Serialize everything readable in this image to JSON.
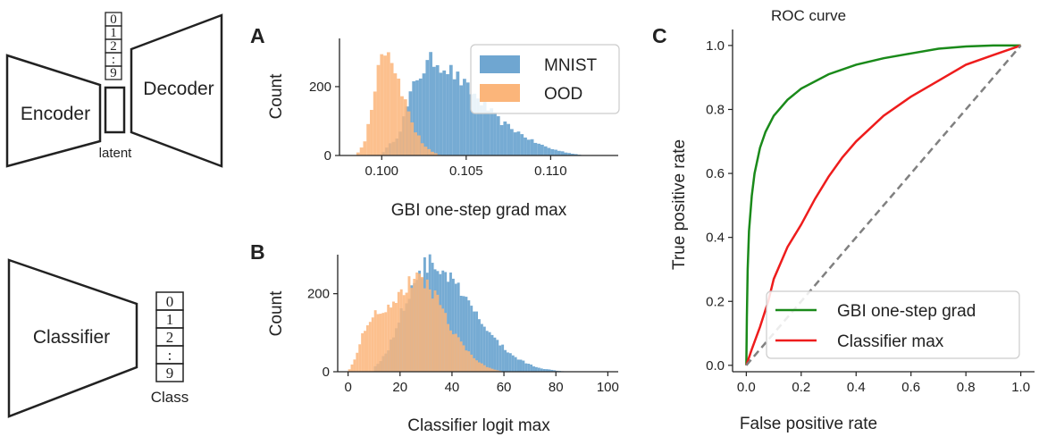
{
  "diagrams": {
    "encoder_label": "Encoder",
    "decoder_label": "Decoder",
    "latent_label": "latent",
    "classifier_label": "Classifier",
    "class_label": "Class",
    "digits": [
      "0",
      "1",
      "2",
      ":",
      "9"
    ]
  },
  "colors": {
    "mnist": "#6fa6d1",
    "ood": "#fbb57a",
    "overlap": "#b9a08a",
    "gbi": "#1a8a1a",
    "classifier": "#ee1c1c",
    "chance": "#808080"
  },
  "chart_data": [
    {
      "panel": "A",
      "type": "histogram",
      "title": "",
      "xlabel": "GBI one-step grad max",
      "ylabel": "Count",
      "xlim": [
        0.0975,
        0.114
      ],
      "ylim": [
        0,
        340
      ],
      "xticks": [
        0.1,
        0.105,
        0.11
      ],
      "xtick_labels": [
        "0.100",
        "0.105",
        "0.110"
      ],
      "yticks": [
        0,
        200
      ],
      "ytick_labels": [
        "0",
        "200"
      ],
      "bin_width": 0.0002,
      "legend": {
        "position": "top-right",
        "entries": [
          "MNIST",
          "OOD"
        ]
      },
      "series": [
        {
          "name": "MNIST",
          "x": [
            0.1,
            0.101,
            0.102,
            0.103,
            0.104,
            0.105,
            0.106,
            0.107,
            0.108,
            0.109,
            0.11,
            0.111,
            0.112
          ],
          "y": [
            5,
            60,
            220,
            280,
            250,
            200,
            150,
            100,
            70,
            40,
            20,
            8,
            0
          ]
        },
        {
          "name": "OOD",
          "x": [
            0.0985,
            0.099,
            0.0995,
            0.1,
            0.1005,
            0.101,
            0.1015,
            0.102,
            0.1025,
            0.103,
            0.1035
          ],
          "y": [
            0,
            40,
            170,
            320,
            300,
            220,
            140,
            70,
            30,
            10,
            0
          ]
        }
      ]
    },
    {
      "panel": "B",
      "type": "histogram",
      "title": "",
      "xlabel": "Classifier logit max",
      "ylabel": "Count",
      "xlim": [
        -4,
        104
      ],
      "ylim": [
        0,
        300
      ],
      "xticks": [
        0,
        20,
        40,
        60,
        80,
        100
      ],
      "xtick_labels": [
        "0",
        "20",
        "40",
        "60",
        "80",
        "100"
      ],
      "yticks": [
        0,
        200
      ],
      "ytick_labels": [
        "0",
        "200"
      ],
      "bin_width": 1,
      "series": [
        {
          "name": "MNIST",
          "x": [
            10,
            15,
            20,
            25,
            30,
            35,
            40,
            45,
            50,
            55,
            60,
            65,
            70,
            75,
            80,
            85
          ],
          "y": [
            10,
            50,
            140,
            230,
            275,
            270,
            235,
            185,
            140,
            95,
            60,
            35,
            18,
            8,
            3,
            0
          ]
        },
        {
          "name": "OOD",
          "x": [
            0,
            3,
            6,
            10,
            15,
            20,
            25,
            30,
            35,
            40,
            45,
            50,
            55,
            60
          ],
          "y": [
            0,
            40,
            110,
            150,
            165,
            200,
            235,
            235,
            180,
            110,
            60,
            25,
            8,
            0
          ]
        }
      ]
    },
    {
      "panel": "C",
      "type": "line",
      "title": "ROC curve",
      "xlabel": "False positive rate",
      "ylabel": "True positive rate",
      "xlim": [
        -0.05,
        1.05
      ],
      "ylim": [
        -0.02,
        1.05
      ],
      "xticks": [
        0,
        0.2,
        0.4,
        0.6,
        0.8,
        1.0
      ],
      "xtick_labels": [
        "0.0",
        "0.2",
        "0.4",
        "0.6",
        "0.8",
        "1.0"
      ],
      "yticks": [
        0,
        0.2,
        0.4,
        0.6,
        0.8,
        1.0
      ],
      "ytick_labels": [
        "0.0",
        "0.2",
        "0.4",
        "0.6",
        "0.8",
        "1.0"
      ],
      "legend": {
        "position": "bottom-right",
        "entries": [
          "GBI one-step grad",
          "Classifier max"
        ]
      },
      "series": [
        {
          "name": "GBI one-step grad",
          "x": [
            0,
            0.002,
            0.005,
            0.01,
            0.02,
            0.03,
            0.05,
            0.07,
            0.1,
            0.15,
            0.2,
            0.3,
            0.4,
            0.5,
            0.6,
            0.7,
            0.8,
            0.9,
            1.0
          ],
          "y": [
            0,
            0.15,
            0.3,
            0.42,
            0.53,
            0.6,
            0.68,
            0.73,
            0.78,
            0.83,
            0.865,
            0.91,
            0.94,
            0.96,
            0.975,
            0.99,
            0.997,
            1.0,
            1.0
          ]
        },
        {
          "name": "Classifier max",
          "x": [
            0,
            0.02,
            0.05,
            0.08,
            0.1,
            0.15,
            0.2,
            0.25,
            0.3,
            0.35,
            0.4,
            0.5,
            0.6,
            0.7,
            0.8,
            0.9,
            1.0
          ],
          "y": [
            0,
            0.05,
            0.12,
            0.2,
            0.27,
            0.37,
            0.44,
            0.52,
            0.59,
            0.65,
            0.7,
            0.78,
            0.84,
            0.89,
            0.94,
            0.97,
            1.0
          ]
        },
        {
          "name": "chance",
          "x": [
            0,
            1
          ],
          "y": [
            0,
            1
          ]
        }
      ]
    }
  ]
}
